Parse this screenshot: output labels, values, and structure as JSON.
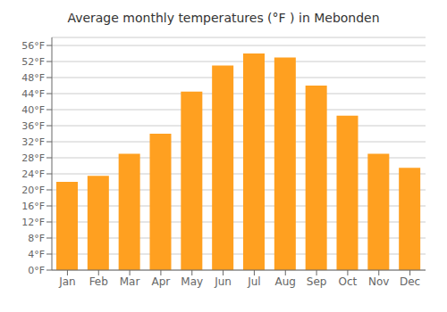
{
  "chart_data": {
    "type": "bar",
    "title": "Average monthly temperatures (°F ) in Mebonden",
    "categories": [
      "Jan",
      "Feb",
      "Mar",
      "Apr",
      "May",
      "Jun",
      "Jul",
      "Aug",
      "Sep",
      "Oct",
      "Nov",
      "Dec"
    ],
    "values": [
      22,
      23.5,
      29,
      34,
      44.5,
      51,
      54,
      53,
      46,
      38.5,
      29,
      25.5
    ],
    "color": "#FFA020",
    "ylim": [
      0,
      58
    ],
    "yticks": [
      {
        "value": 0,
        "label": "0°F"
      },
      {
        "value": 4,
        "label": "4°F"
      },
      {
        "value": 8,
        "label": "8°F"
      },
      {
        "value": 12,
        "label": "12°F"
      },
      {
        "value": 16,
        "label": "16°F"
      },
      {
        "value": 20,
        "label": "20°F"
      },
      {
        "value": 24,
        "label": "24°F"
      },
      {
        "value": 28,
        "label": "28°F"
      },
      {
        "value": 32,
        "label": "32°F"
      },
      {
        "value": 36,
        "label": "36°F"
      },
      {
        "value": 40,
        "label": "40°F"
      },
      {
        "value": 44,
        "label": "44°F"
      },
      {
        "value": 48,
        "label": "48°F"
      },
      {
        "value": 52,
        "label": "52°F"
      },
      {
        "value": 56,
        "label": "56°F"
      }
    ],
    "grid": true
  }
}
